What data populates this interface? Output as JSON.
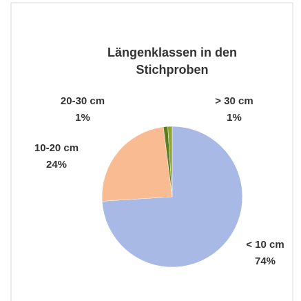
{
  "chart_data": {
    "type": "pie",
    "title": "Längenklassen in den Stichproben",
    "categories": [
      "< 10 cm",
      "10-20 cm",
      "20-30 cm",
      "> 30 cm"
    ],
    "values": [
      74,
      24,
      1,
      1
    ],
    "value_labels": [
      "74%",
      "24%",
      "1%",
      "1%"
    ],
    "colors": [
      "#a9b9e6",
      "#f8bb92",
      "#5b7d22",
      "#8fa532"
    ]
  }
}
